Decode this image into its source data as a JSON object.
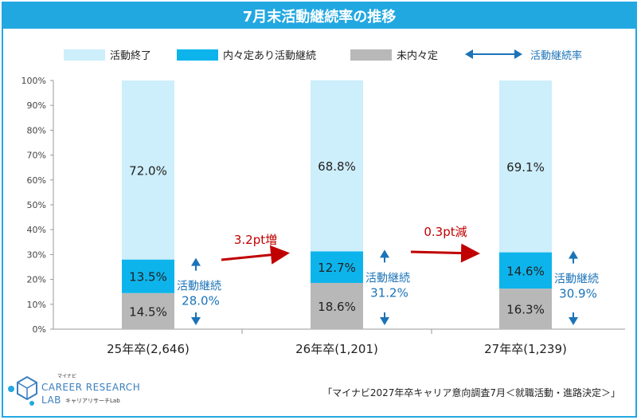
{
  "title": "7月末活動継続率の推移",
  "legend": {
    "items": [
      {
        "label": "活動終了",
        "color": "#cdeefb"
      },
      {
        "label": "内々定あり活動継続",
        "color": "#0db4ec"
      },
      {
        "label": "未内々定",
        "color": "#b8b8b8"
      }
    ],
    "arrow_label": "活動継続率"
  },
  "chart_data": {
    "type": "bar",
    "stacked": true,
    "categories": [
      "25年卒(2,646)",
      "26年卒(1,201)",
      "27年卒(1,239)"
    ],
    "series": [
      {
        "name": "未内々定",
        "values": [
          14.5,
          18.6,
          16.3
        ],
        "color": "#b8b8b8"
      },
      {
        "name": "内々定あり活動継続",
        "values": [
          13.5,
          12.7,
          14.6
        ],
        "color": "#0db4ec"
      },
      {
        "name": "活動終了",
        "values": [
          72.0,
          68.8,
          69.1
        ],
        "color": "#cdeefb"
      }
    ],
    "value_labels": [
      [
        "14.5%",
        "13.5%",
        "72.0%"
      ],
      [
        "18.6%",
        "12.7%",
        "68.8%"
      ],
      [
        "16.3%",
        "14.6%",
        "69.1%"
      ]
    ],
    "continuation": {
      "label": "活動継続",
      "values": [
        "28.0%",
        "31.2%",
        "30.9%"
      ]
    },
    "changes": [
      "3.2pt増",
      "0.3pt減"
    ],
    "ylim": [
      0,
      100
    ],
    "yticks": [
      "0%",
      "10%",
      "20%",
      "30%",
      "40%",
      "50%",
      "60%",
      "70%",
      "80%",
      "90%",
      "100%"
    ],
    "grid": false,
    "legend_position": "top"
  },
  "logo": {
    "small": "マイナビ",
    "line1": "CAREER RESEARCH",
    "line2": "LAB",
    "tag": "キャリアリサーチLab"
  },
  "source": "「マイナビ2027年卒キャリア意向調査7月＜就職活動・進路決定＞」",
  "colors": {
    "accent": "#22a8e1",
    "arrow": "#1b73b8",
    "change": "#c00000"
  }
}
